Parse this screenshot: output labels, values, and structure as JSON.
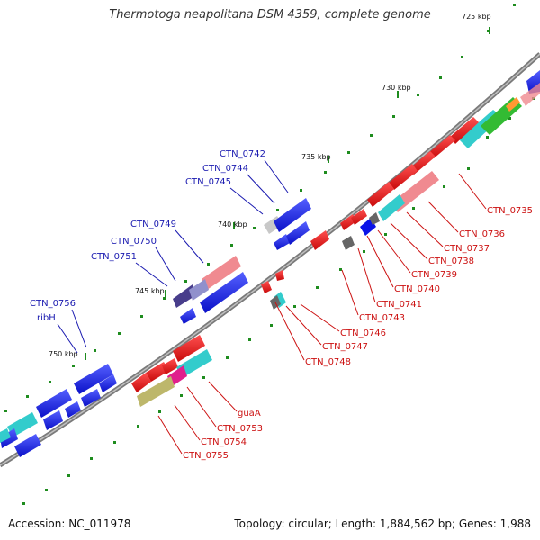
{
  "title": "Thermotoga neapolitana DSM 4359, complete genome",
  "footer": {
    "accession": "Accession: NC_011978",
    "summary": "Topology: circular; Length: 1,884,562 bp; Genes: 1,988"
  },
  "ticks": [
    "725 kbp",
    "730 kbp",
    "735 kbp",
    "740 kbp",
    "745 kbp",
    "750 kbp"
  ],
  "blue_labels": [
    "CTN_0742",
    "CTN_0744",
    "CTN_0745",
    "CTN_0749",
    "CTN_0750",
    "CTN_0751",
    "CTN_0756",
    "ribH"
  ],
  "red_labels": [
    "CTN_0735",
    "CTN_0736",
    "CTN_0737",
    "CTN_0738",
    "CTN_0739",
    "CTN_0740",
    "CTN_0741",
    "CTN_0743",
    "CTN_0746",
    "CTN_0747",
    "CTN_0748",
    "guaA",
    "CTN_0753",
    "CTN_0754",
    "CTN_0755"
  ],
  "colors": {
    "forward_gene": "#0a14e8",
    "reverse_gene": "#e81010",
    "backbone": "#888888",
    "tick_dot": "#1e8c1e",
    "pink_feature": "#f08a90",
    "cyan_feature": "#33cccc",
    "olive_feature": "#bdb76b",
    "slate_feature": "#483d8b",
    "green_feature": "#33bb33",
    "orange_feature": "#ff9933"
  }
}
